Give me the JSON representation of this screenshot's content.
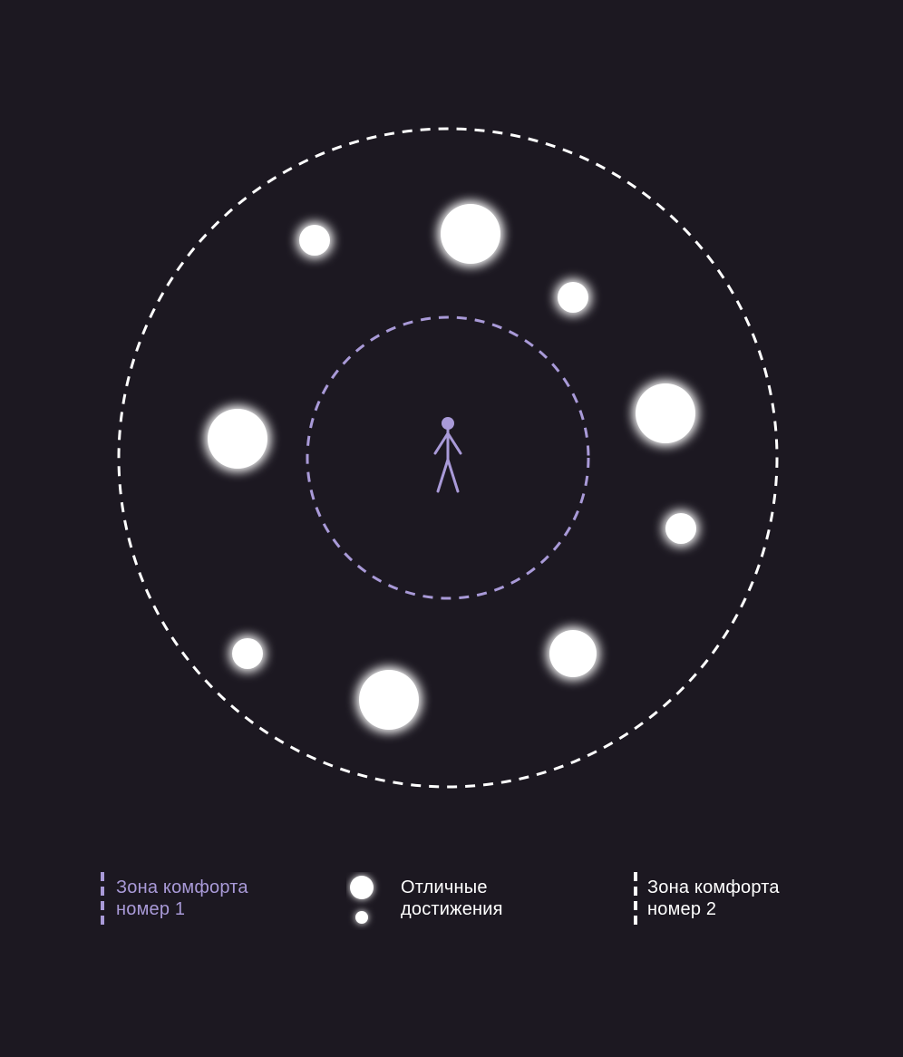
{
  "colors": {
    "background": "#1c1821",
    "zone1": "#a99ad8",
    "zone2": "#ffffff",
    "achievement": "#ffffff"
  },
  "diagram": {
    "center_figure_icon": "stick-figure-icon",
    "achievement_sizes": [
      "small",
      "large",
      "small",
      "large",
      "large",
      "small",
      "small",
      "large",
      "large"
    ]
  },
  "legend": {
    "zone1": {
      "line1": "Зона комфорта",
      "line2": "номер 1"
    },
    "achievements": {
      "line1": "Отличные",
      "line2": "достижения"
    },
    "zone2": {
      "line1": "Зона комфорта",
      "line2": "номер 2"
    }
  }
}
